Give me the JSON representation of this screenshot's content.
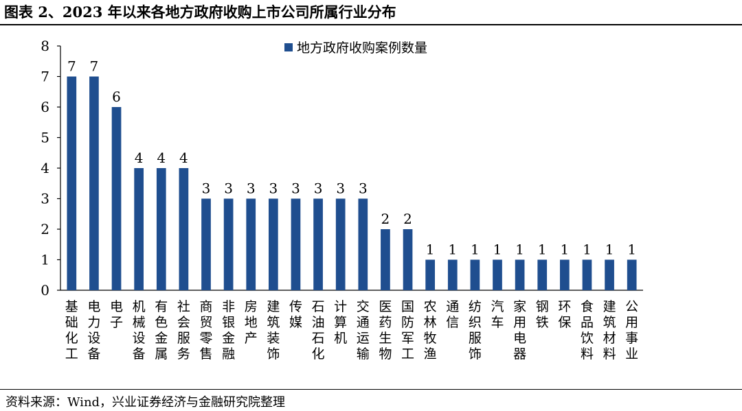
{
  "figure_title": "图表 2、2023 年以来各地方政府收购上市公司所属行业分布",
  "source_note": "资料来源：Wind，兴业证券经济与金融研究院整理",
  "chart_data": {
    "type": "bar",
    "title": "",
    "xlabel": "",
    "ylabel": "",
    "ylim": [
      0,
      8
    ],
    "yticks": [
      "0",
      "1",
      "2",
      "3",
      "4",
      "5",
      "6",
      "7",
      "8"
    ],
    "grid": false,
    "legend_position": "top-center",
    "bar_color": "#1f4e8f",
    "categories": [
      "基础化工",
      "电力设备",
      "电子",
      "机械设备",
      "有色金属",
      "社会服务",
      "商贸零售",
      "非银金融",
      "房地产",
      "建筑装饰",
      "传媒",
      "石油石化",
      "计算机",
      "交通运输",
      "医药生物",
      "国防军工",
      "农林牧渔",
      "通信",
      "纺织服饰",
      "汽车",
      "家用电器",
      "钢铁",
      "环保",
      "食品饮料",
      "建筑材料",
      "公用事业"
    ],
    "series": [
      {
        "name": "地方政府收购案例数量",
        "values": [
          7,
          7,
          6,
          4,
          4,
          4,
          3,
          3,
          3,
          3,
          3,
          3,
          3,
          3,
          2,
          2,
          1,
          1,
          1,
          1,
          1,
          1,
          1,
          1,
          1,
          1
        ]
      }
    ]
  }
}
